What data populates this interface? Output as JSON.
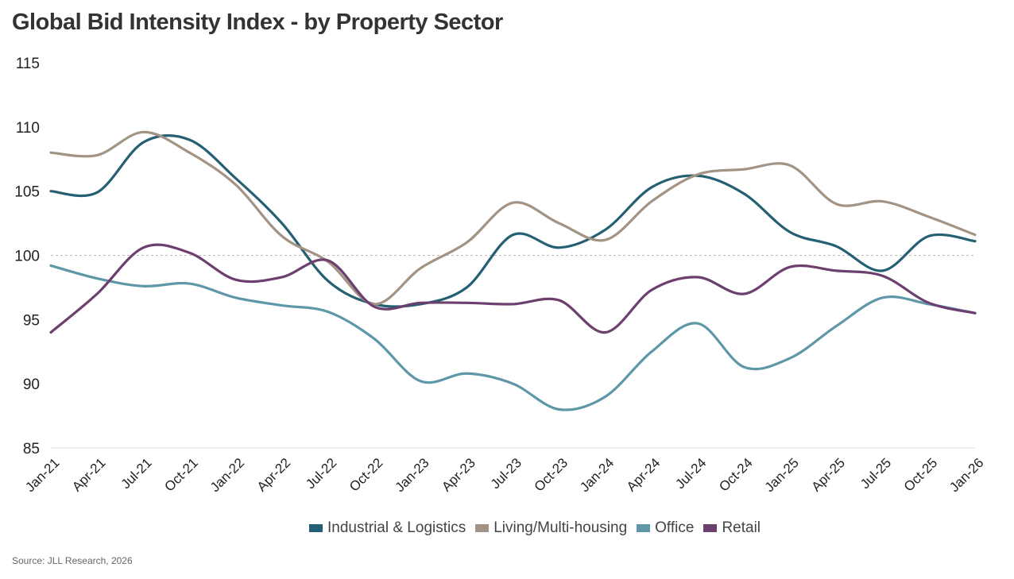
{
  "title": "Global Bid Intensity Index - by Property Sector",
  "source": "Source: JLL Research, 2026",
  "chart_data": {
    "type": "line",
    "title": "Global Bid Intensity Index - by Property Sector",
    "xlabel": "",
    "ylabel": "",
    "ylim": [
      85,
      115
    ],
    "yticks": [
      85,
      90,
      95,
      100,
      105,
      110,
      115
    ],
    "reference_line": 100,
    "grid": false,
    "legend": "bottom",
    "categories": [
      "Jan-21",
      "Apr-21",
      "Jul-21",
      "Oct-21",
      "Jan-22",
      "Apr-22",
      "Jul-22",
      "Oct-22",
      "Jan-23",
      "Apr-23",
      "Jul-23",
      "Oct-23",
      "Jan-24",
      "Apr-24",
      "Jul-24",
      "Oct-24",
      "Jan-25",
      "Apr-25",
      "Jul-25",
      "Oct-25",
      "Jan-26"
    ],
    "series": [
      {
        "name": "Industrial & Logistics",
        "color": "#245f73",
        "values": [
          105,
          104.9,
          108.8,
          109,
          106,
          102.5,
          98,
          96.2,
          96.2,
          97.5,
          101.6,
          100.6,
          102,
          105.3,
          106.2,
          104.8,
          101.8,
          100.7,
          98.8,
          101.5,
          101.1
        ]
      },
      {
        "name": "Living/Multi-housing",
        "color": "#a39384",
        "values": [
          108,
          107.8,
          109.6,
          108,
          105.5,
          101.5,
          99.5,
          96.2,
          99,
          101,
          104.1,
          102.5,
          101.2,
          104.2,
          106.3,
          106.7,
          107,
          104,
          104.2,
          103,
          101.6
        ]
      },
      {
        "name": "Office",
        "color": "#5e97a8",
        "values": [
          99.2,
          98.2,
          97.6,
          97.8,
          96.7,
          96.1,
          95.6,
          93.5,
          90.2,
          90.8,
          90,
          88,
          89,
          92.5,
          94.7,
          91.3,
          92,
          94.5,
          96.7,
          96.2,
          95.5
        ]
      },
      {
        "name": "Retail",
        "color": "#6c3f6e",
        "values": [
          94,
          97,
          100.6,
          100.2,
          98.1,
          98.3,
          99.6,
          96,
          96.3,
          96.3,
          96.2,
          96.5,
          94,
          97.3,
          98.3,
          97,
          99.1,
          98.8,
          98.4,
          96.3,
          95.5
        ]
      }
    ]
  }
}
